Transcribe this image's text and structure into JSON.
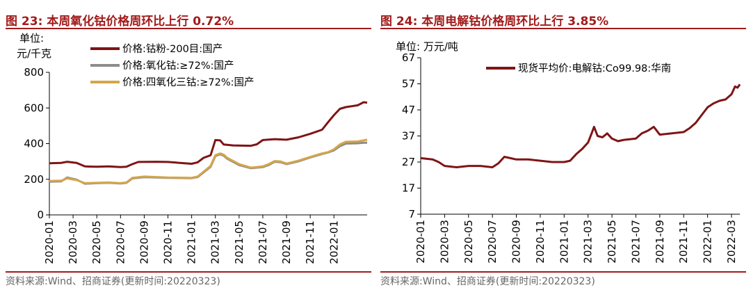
{
  "charts": [
    {
      "title": "图 23:  本周氧化钴价格周环比上行 0.72%",
      "unit": [
        "单位:",
        "元/千克"
      ],
      "source": "资料来源:Wind、招商证券(更新时间:20220323)"
    },
    {
      "title": "图 24:  本周电解钴价格周环比上行 3.85%",
      "unit": [
        "单位:  万元/吨"
      ],
      "source": "资料来源:Wind、招商证券(更新时间:20220323)"
    }
  ],
  "chart_data": [
    {
      "type": "line",
      "title": "图 23:  本周氧化钴价格周环比上行 0.72%",
      "ylabel": "元/千克",
      "ylim": [
        0,
        800
      ],
      "yticks": [
        "0",
        "200",
        "400",
        "600",
        "800"
      ],
      "xticks": [
        "2020-01",
        "2020-03",
        "2020-05",
        "2020-07",
        "2020-09",
        "2020-11",
        "2021-01",
        "2021-03",
        "2021-05",
        "2021-07",
        "2021-09",
        "2021-11",
        "2022-01"
      ],
      "xrange": [
        0,
        26.8
      ],
      "series": [
        {
          "name": "价格:钴粉-200目:国产",
          "color": "#7f1416",
          "points": [
            [
              0,
              290
            ],
            [
              1,
              292
            ],
            [
              1.5,
              298
            ],
            [
              2.3,
              292
            ],
            [
              3,
              272
            ],
            [
              4,
              270
            ],
            [
              5,
              272
            ],
            [
              6,
              268
            ],
            [
              6.5,
              270
            ],
            [
              7,
              285
            ],
            [
              7.5,
              297
            ],
            [
              9,
              298
            ],
            [
              10,
              297
            ],
            [
              11,
              292
            ],
            [
              12,
              287
            ],
            [
              12.5,
              295
            ],
            [
              13,
              320
            ],
            [
              13.6,
              335
            ],
            [
              14,
              420
            ],
            [
              14.4,
              418
            ],
            [
              14.7,
              395
            ],
            [
              15.5,
              390
            ],
            [
              17,
              388
            ],
            [
              17.5,
              396
            ],
            [
              18,
              420
            ],
            [
              19,
              425
            ],
            [
              20,
              422
            ],
            [
              21,
              435
            ],
            [
              22,
              455
            ],
            [
              23,
              478
            ],
            [
              23.5,
              520
            ],
            [
              24,
              560
            ],
            [
              24.5,
              595
            ],
            [
              25,
              605
            ],
            [
              26,
              615
            ],
            [
              26.5,
              632
            ],
            [
              26.8,
              630
            ]
          ]
        },
        {
          "name": "价格:氧化钴:≥72%:国产",
          "color": "#8c8c8c",
          "points": [
            [
              0,
              186
            ],
            [
              1,
              188
            ],
            [
              1.5,
              210
            ],
            [
              2.3,
              198
            ],
            [
              3,
              175
            ],
            [
              4,
              178
            ],
            [
              5,
              180
            ],
            [
              6,
              176
            ],
            [
              6.5,
              180
            ],
            [
              7,
              205
            ],
            [
              8,
              212
            ],
            [
              10,
              208
            ],
            [
              12,
              206
            ],
            [
              12.5,
              212
            ],
            [
              13,
              238
            ],
            [
              13.6,
              270
            ],
            [
              14,
              330
            ],
            [
              14.4,
              340
            ],
            [
              14.7,
              332
            ],
            [
              15,
              315
            ],
            [
              16,
              280
            ],
            [
              17,
              262
            ],
            [
              18,
              268
            ],
            [
              18.5,
              280
            ],
            [
              19,
              298
            ],
            [
              19.5,
              296
            ],
            [
              20,
              285
            ],
            [
              21,
              300
            ],
            [
              22,
              322
            ],
            [
              23,
              342
            ],
            [
              23.5,
              350
            ],
            [
              24,
              362
            ],
            [
              24.5,
              385
            ],
            [
              25,
              400
            ],
            [
              26,
              402
            ],
            [
              26.5,
              405
            ],
            [
              26.8,
              405
            ]
          ]
        },
        {
          "name": "价格:四氧化三钴:≥72%:国产",
          "color": "#d4a64a",
          "points": [
            [
              0,
              190
            ],
            [
              1,
              192
            ],
            [
              1.5,
              205
            ],
            [
              2.3,
              195
            ],
            [
              3,
              178
            ],
            [
              4,
              180
            ],
            [
              5,
              182
            ],
            [
              6,
              178
            ],
            [
              6.5,
              182
            ],
            [
              7,
              208
            ],
            [
              8,
              215
            ],
            [
              10,
              210
            ],
            [
              12,
              208
            ],
            [
              12.5,
              215
            ],
            [
              13,
              242
            ],
            [
              13.6,
              275
            ],
            [
              14,
              335
            ],
            [
              14.4,
              345
            ],
            [
              14.7,
              338
            ],
            [
              15,
              320
            ],
            [
              16,
              285
            ],
            [
              17,
              265
            ],
            [
              18,
              272
            ],
            [
              18.5,
              285
            ],
            [
              19,
              302
            ],
            [
              19.5,
              300
            ],
            [
              20,
              288
            ],
            [
              21,
              304
            ],
            [
              22,
              325
            ],
            [
              23,
              345
            ],
            [
              23.5,
              352
            ],
            [
              24,
              368
            ],
            [
              24.5,
              395
            ],
            [
              25,
              410
            ],
            [
              26,
              412
            ],
            [
              26.5,
              418
            ],
            [
              26.8,
              422
            ]
          ]
        }
      ]
    },
    {
      "type": "line",
      "title": "图 24:  本周电解钴价格周环比上行 3.85%",
      "ylabel": "万元/吨",
      "ylim": [
        7,
        67
      ],
      "yticks": [
        "7",
        "17",
        "27",
        "37",
        "47",
        "57",
        "67"
      ],
      "xticks": [
        "2020-01",
        "2020-03",
        "2020-05",
        "2020-07",
        "2020-09",
        "2020-11",
        "2021-01",
        "2021-03",
        "2021-05",
        "2021-07",
        "2021-09",
        "2021-11",
        "2022-01",
        "2022-03"
      ],
      "xrange": [
        0,
        26.7
      ],
      "series": [
        {
          "name": "现货平均价:电解钴:Co99.98:华南",
          "color": "#7f1416",
          "points": [
            [
              0,
              28.5
            ],
            [
              1,
              28
            ],
            [
              1.5,
              27
            ],
            [
              2,
              25.5
            ],
            [
              3,
              25
            ],
            [
              4,
              25.5
            ],
            [
              5,
              25.5
            ],
            [
              6,
              25
            ],
            [
              6.5,
              26.5
            ],
            [
              7,
              29
            ],
            [
              7.5,
              28.5
            ],
            [
              8,
              28
            ],
            [
              9,
              28
            ],
            [
              10,
              27.5
            ],
            [
              11,
              27
            ],
            [
              12,
              27
            ],
            [
              12.5,
              27.5
            ],
            [
              13,
              30
            ],
            [
              13.5,
              32
            ],
            [
              14,
              34.5
            ],
            [
              14.3,
              38
            ],
            [
              14.5,
              40.5
            ],
            [
              14.8,
              37
            ],
            [
              15.2,
              36.5
            ],
            [
              15.6,
              38
            ],
            [
              16,
              36
            ],
            [
              16.5,
              35
            ],
            [
              17,
              35.5
            ],
            [
              18,
              36
            ],
            [
              18.5,
              38
            ],
            [
              19,
              39
            ],
            [
              19.5,
              40.5
            ],
            [
              20,
              37.5
            ],
            [
              21,
              38
            ],
            [
              22,
              38.5
            ],
            [
              22.5,
              40
            ],
            [
              23,
              42
            ],
            [
              23.5,
              45
            ],
            [
              24,
              48
            ],
            [
              24.5,
              49.5
            ],
            [
              25,
              50.5
            ],
            [
              25.5,
              51
            ],
            [
              26,
              53
            ],
            [
              26.3,
              56
            ],
            [
              26.5,
              55.5
            ],
            [
              26.7,
              56.8
            ]
          ]
        }
      ]
    }
  ]
}
